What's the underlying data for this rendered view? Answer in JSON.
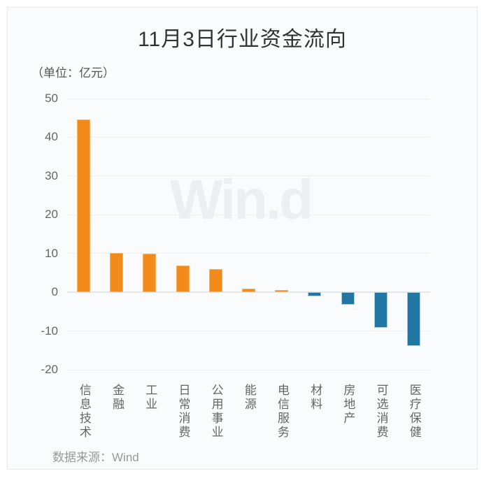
{
  "chart_data": {
    "type": "bar",
    "title": "11月3日行业资金流向",
    "unit_label": "（单位：亿元）",
    "source": "数据来源：Wind",
    "watermark": "Win.d",
    "categories": [
      "信息技术",
      "金融",
      "工业",
      "日常消费",
      "公用事业",
      "能源",
      "电信服务",
      "材料",
      "房地产",
      "可选消费",
      "医疗保健"
    ],
    "values": [
      44.6,
      10.2,
      9.9,
      6.8,
      5.9,
      0.9,
      0.5,
      -1.1,
      -3.3,
      -9.1,
      -13.9
    ],
    "ylabel": "",
    "xlabel": "",
    "ylim": [
      -20,
      50
    ],
    "yticks": [
      50,
      40,
      30,
      20,
      10,
      0,
      -10,
      -20
    ],
    "grid": true,
    "legend_position": "none",
    "positive_color": "#F28B1C",
    "positive_border_color": "#F6B464",
    "negative_color": "#2176A4",
    "negative_border_color": "#A9CCDD",
    "background_color": "#FAFBFD"
  }
}
